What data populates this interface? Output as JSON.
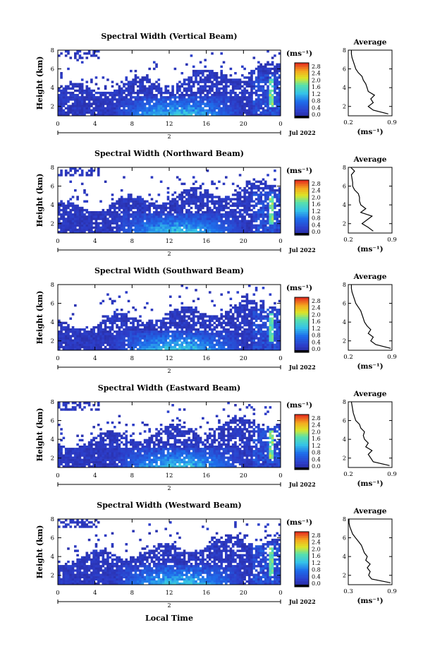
{
  "figure": {
    "date": "Jul 2022",
    "xlabel": "Local Time",
    "day_label": "2",
    "colorbar_unit": "(ms⁻¹)",
    "colorbar_ticks": [
      "0.0",
      "0.4",
      "0.8",
      "1.2",
      "1.6",
      "2.0",
      "2.4",
      "2.8"
    ],
    "avg_title": "Average",
    "avg_xlabel": "(ms⁻¹)",
    "colors": {
      "background": "#ffffff",
      "low": "#2c3cc8",
      "mid": "#35c4e8",
      "high": "#f0e020",
      "max": "#e83020",
      "missing": "#ffffff"
    }
  },
  "chart_data": [
    {
      "type": "heatmap",
      "title": "Spectral Width (Vertical Beam)",
      "xlabel": "Local Time",
      "ylabel": "Height (km)",
      "xticks": [
        "0",
        "4",
        "8",
        "12",
        "16",
        "20",
        "0"
      ],
      "yticks": [
        "2",
        "4",
        "6",
        "8"
      ],
      "xlim": [
        0,
        24
      ],
      "ylim": [
        1.0,
        8.0
      ],
      "colorbar_range": [
        0.0,
        2.8
      ],
      "profile": {
        "title": "Average",
        "xlabel": "(ms⁻¹)",
        "xticks": [
          "0.2",
          "0.9"
        ],
        "xlim": [
          0.2,
          0.9
        ],
        "yticks": [
          "2",
          "4",
          "6",
          "8"
        ],
        "ylim": [
          1.0,
          8.0
        ],
        "heights": [
          1.2,
          1.6,
          2.0,
          2.4,
          2.8,
          3.2,
          3.6,
          4.0,
          4.4,
          4.8,
          5.2,
          5.6,
          6.0,
          6.4,
          6.8,
          7.2,
          7.6,
          8.0
        ],
        "values": [
          0.84,
          0.6,
          0.52,
          0.6,
          0.56,
          0.62,
          0.52,
          0.5,
          0.48,
          0.44,
          0.42,
          0.36,
          0.32,
          0.3,
          0.28,
          0.26,
          0.25,
          0.25
        ]
      }
    },
    {
      "type": "heatmap",
      "title": "Spectral Width (Northward Beam)",
      "xlabel": "Local Time",
      "ylabel": "Height (km)",
      "xticks": [
        "0",
        "4",
        "8",
        "12",
        "16",
        "20",
        "0"
      ],
      "yticks": [
        "2",
        "4",
        "6",
        "8"
      ],
      "xlim": [
        0,
        24
      ],
      "ylim": [
        1.0,
        8.0
      ],
      "colorbar_range": [
        0.0,
        2.8
      ],
      "profile": {
        "title": "Average",
        "xlabel": "(ms⁻¹)",
        "xticks": [
          "0.2",
          "0.9"
        ],
        "xlim": [
          0.2,
          0.9
        ],
        "yticks": [
          "2",
          "4",
          "6",
          "8"
        ],
        "ylim": [
          1.0,
          8.0
        ],
        "heights": [
          1.2,
          1.6,
          2.0,
          2.4,
          2.8,
          3.2,
          3.6,
          4.0,
          4.4,
          4.8,
          5.2,
          5.6,
          6.0,
          6.4,
          6.8,
          7.2,
          7.6,
          8.0
        ],
        "values": [
          0.6,
          0.52,
          0.42,
          0.5,
          0.58,
          0.4,
          0.48,
          0.4,
          0.38,
          0.38,
          0.36,
          0.3,
          0.27,
          0.27,
          0.26,
          0.25,
          0.3,
          0.24
        ]
      }
    },
    {
      "type": "heatmap",
      "title": "Spectral Width (Southward Beam)",
      "xlabel": "Local Time",
      "ylabel": "Height (km)",
      "xticks": [
        "0",
        "4",
        "8",
        "12",
        "16",
        "20",
        "0"
      ],
      "yticks": [
        "2",
        "4",
        "6",
        "8"
      ],
      "xlim": [
        0,
        24
      ],
      "ylim": [
        1.0,
        8.0
      ],
      "colorbar_range": [
        0.0,
        2.8
      ],
      "profile": {
        "title": "Average",
        "xlabel": "(ms⁻¹)",
        "xticks": [
          "0.2",
          "0.9"
        ],
        "xlim": [
          0.2,
          0.9
        ],
        "yticks": [
          "2",
          "4",
          "6",
          "8"
        ],
        "ylim": [
          1.0,
          8.0
        ],
        "heights": [
          1.2,
          1.6,
          2.0,
          2.4,
          2.8,
          3.2,
          3.6,
          4.0,
          4.4,
          4.8,
          5.2,
          5.6,
          6.0,
          6.4,
          6.8,
          7.2,
          7.6,
          8.0
        ],
        "values": [
          0.88,
          0.64,
          0.56,
          0.6,
          0.52,
          0.56,
          0.5,
          0.46,
          0.44,
          0.42,
          0.4,
          0.36,
          0.32,
          0.3,
          0.28,
          0.26,
          0.25,
          0.25
        ]
      }
    },
    {
      "type": "heatmap",
      "title": "Spectral Width (Eastward Beam)",
      "xlabel": "Local Time",
      "ylabel": "Height (km)",
      "xticks": [
        "0",
        "4",
        "8",
        "12",
        "16",
        "20",
        "0"
      ],
      "yticks": [
        "2",
        "4",
        "6",
        "8"
      ],
      "xlim": [
        0,
        24
      ],
      "ylim": [
        1.0,
        8.0
      ],
      "colorbar_range": [
        0.0,
        2.8
      ],
      "profile": {
        "title": "Average",
        "xlabel": "(ms⁻¹)",
        "xticks": [
          "0.2",
          "0.9"
        ],
        "xlim": [
          0.2,
          0.9
        ],
        "yticks": [
          "2",
          "4",
          "6",
          "8"
        ],
        "ylim": [
          1.0,
          8.0
        ],
        "heights": [
          1.2,
          1.6,
          2.0,
          2.4,
          2.8,
          3.2,
          3.6,
          4.0,
          4.4,
          4.8,
          5.2,
          5.6,
          6.0,
          6.4,
          6.8,
          7.2,
          7.6,
          8.0
        ],
        "values": [
          0.86,
          0.6,
          0.56,
          0.52,
          0.58,
          0.48,
          0.52,
          0.46,
          0.44,
          0.46,
          0.4,
          0.38,
          0.32,
          0.3,
          0.28,
          0.27,
          0.26,
          0.25
        ]
      }
    },
    {
      "type": "heatmap",
      "title": "Spectral Width (Westward Beam)",
      "xlabel": "Local Time",
      "ylabel": "Height (km)",
      "xticks": [
        "0",
        "4",
        "8",
        "12",
        "16",
        "20",
        "0"
      ],
      "yticks": [
        "2",
        "4",
        "6",
        "8"
      ],
      "xlim": [
        0,
        24
      ],
      "ylim": [
        1.0,
        8.0
      ],
      "colorbar_range": [
        0.0,
        2.8
      ],
      "profile": {
        "title": "Average",
        "xlabel": "(ms⁻¹)",
        "xticks": [
          "0.3",
          "0.9"
        ],
        "xlim": [
          0.3,
          0.9
        ],
        "yticks": [
          "2",
          "4",
          "6",
          "8"
        ],
        "ylim": [
          1.0,
          8.0
        ],
        "heights": [
          1.2,
          1.6,
          2.0,
          2.4,
          2.8,
          3.2,
          3.6,
          4.0,
          4.4,
          4.8,
          5.2,
          5.6,
          6.0,
          6.4,
          6.8,
          7.2,
          7.6,
          8.0
        ],
        "values": [
          0.88,
          0.62,
          0.58,
          0.6,
          0.56,
          0.6,
          0.54,
          0.56,
          0.52,
          0.5,
          0.48,
          0.44,
          0.4,
          0.36,
          0.34,
          0.32,
          0.31,
          0.31
        ]
      }
    }
  ]
}
